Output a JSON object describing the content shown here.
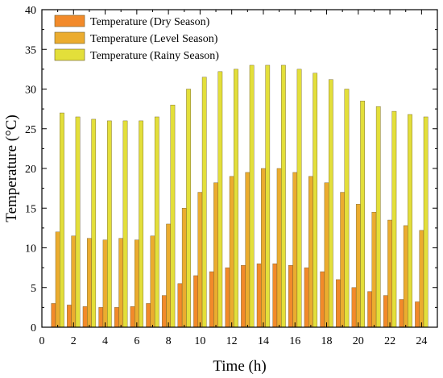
{
  "chart_data": {
    "type": "bar",
    "title": "",
    "xlabel": "Time (h)",
    "ylabel": "Temperature (°C)",
    "xlim": [
      0,
      25
    ],
    "ylim": [
      0,
      40
    ],
    "xticks": [
      "0",
      "2",
      "4",
      "6",
      "8",
      "10",
      "12",
      "14",
      "16",
      "18",
      "20",
      "22",
      "24"
    ],
    "yticks": [
      "0",
      "5",
      "10",
      "15",
      "20",
      "25",
      "30",
      "35",
      "40"
    ],
    "grid": false,
    "legend_position": "top-left",
    "x": [
      1,
      2,
      3,
      4,
      5,
      6,
      7,
      8,
      9,
      10,
      11,
      12,
      13,
      14,
      15,
      16,
      17,
      18,
      19,
      20,
      21,
      22,
      23,
      24
    ],
    "series": [
      {
        "name": "Temperature (Dry Season)",
        "color": "#f28a2a",
        "values": [
          3.0,
          2.8,
          2.6,
          2.5,
          2.5,
          2.6,
          3.0,
          4.0,
          5.5,
          6.5,
          7.0,
          7.5,
          7.8,
          8.0,
          8.0,
          7.8,
          7.5,
          7.0,
          6.0,
          5.0,
          4.5,
          4.0,
          3.5,
          3.2
        ]
      },
      {
        "name": "Temperature (Level Season)",
        "color": "#ebac2f",
        "values": [
          12.0,
          11.5,
          11.2,
          11.0,
          11.2,
          11.0,
          11.5,
          13.0,
          15.0,
          17.0,
          18.2,
          19.0,
          19.5,
          20.0,
          20.0,
          19.5,
          19.0,
          18.2,
          17.0,
          15.5,
          14.5,
          13.5,
          12.8,
          12.2
        ]
      },
      {
        "name": "Temperature (Rainy Season)",
        "color": "#e3df3a",
        "values": [
          27.0,
          26.5,
          26.2,
          26.0,
          26.0,
          26.0,
          26.5,
          28.0,
          30.0,
          31.5,
          32.2,
          32.5,
          33.0,
          33.0,
          33.0,
          32.5,
          32.0,
          31.2,
          30.0,
          28.5,
          27.8,
          27.2,
          26.8,
          26.5
        ]
      }
    ]
  }
}
